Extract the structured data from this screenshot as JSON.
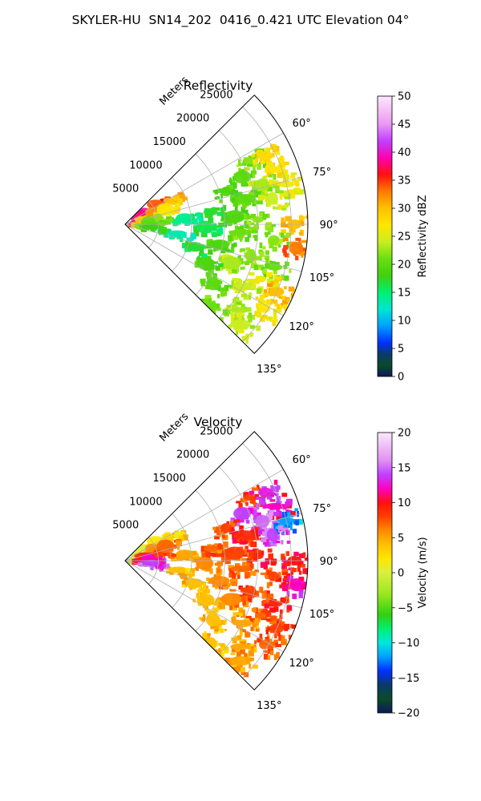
{
  "suptitle": "SKYLER-HU  SN14_202  0416_0.421 UTC Elevation 04°",
  "chart_data": [
    {
      "type": "heatmap",
      "subtype": "polar sector (PPI radar scan)",
      "title": "Reflectivity",
      "radial_label": "Meters",
      "range_ticks": [
        5000,
        10000,
        15000,
        20000,
        25000
      ],
      "range_tick_labels": [
        "5000",
        "10000",
        "15000",
        "20000",
        "25000"
      ],
      "range_max": 27500,
      "azimuth_ticks_deg": [
        60,
        75,
        90,
        105,
        120,
        135
      ],
      "azimuth_tick_labels": [
        "60°",
        "75°",
        "90°",
        "105°",
        "120°",
        "135°"
      ],
      "azimuth_range_deg": [
        45,
        135
      ],
      "grid": true,
      "colorbar": {
        "label": "Reflectivity dBZ",
        "min": 0,
        "max": 50,
        "ticks": [
          0,
          5,
          10,
          15,
          20,
          25,
          30,
          35,
          40,
          45,
          50
        ],
        "tick_labels": [
          "0",
          "5",
          "10",
          "15",
          "20",
          "25",
          "30",
          "35",
          "40",
          "45",
          "50"
        ],
        "stops": [
          [
            0,
            "#0a1a5a"
          ],
          [
            2,
            "#0b4a2a"
          ],
          [
            4,
            "#0a3a6a"
          ],
          [
            6,
            "#0030ff"
          ],
          [
            9,
            "#00a0ff"
          ],
          [
            12,
            "#00e6d0"
          ],
          [
            15,
            "#00f070"
          ],
          [
            18,
            "#40d010"
          ],
          [
            21,
            "#6adf10"
          ],
          [
            24,
            "#c8ee20"
          ],
          [
            27,
            "#ffe600"
          ],
          [
            30,
            "#ffc000"
          ],
          [
            33,
            "#ff7a00"
          ],
          [
            36,
            "#ff1010"
          ],
          [
            39,
            "#ff00b0"
          ],
          [
            42,
            "#c040ff"
          ],
          [
            45,
            "#ea98f2"
          ],
          [
            50,
            "#fce8fc"
          ]
        ]
      },
      "echo_cells": [
        {
          "az": 63,
          "r": 21000,
          "val": 22
        },
        {
          "az": 64,
          "r": 23500,
          "val": 28
        },
        {
          "az": 68,
          "r": 19000,
          "val": 20
        },
        {
          "az": 70,
          "r": 24000,
          "val": 27
        },
        {
          "az": 72,
          "r": 16000,
          "val": 19
        },
        {
          "az": 74,
          "r": 21500,
          "val": 23
        },
        {
          "az": 76,
          "r": 25000,
          "val": 26
        },
        {
          "az": 78,
          "r": 18500,
          "val": 20
        },
        {
          "az": 80,
          "r": 22500,
          "val": 24
        },
        {
          "az": 82,
          "r": 13000,
          "val": 17
        },
        {
          "az": 84,
          "r": 9000,
          "val": 14
        },
        {
          "az": 86,
          "r": 16500,
          "val": 19
        },
        {
          "az": 88,
          "r": 20000,
          "val": 22
        },
        {
          "az": 90,
          "r": 25500,
          "val": 30
        },
        {
          "az": 92,
          "r": 12000,
          "val": 16
        },
        {
          "az": 94,
          "r": 17500,
          "val": 21
        },
        {
          "az": 96,
          "r": 22500,
          "val": 22
        },
        {
          "az": 98,
          "r": 26000,
          "val": 33
        },
        {
          "az": 100,
          "r": 8000,
          "val": 13
        },
        {
          "az": 102,
          "r": 14500,
          "val": 19
        },
        {
          "az": 104,
          "r": 19500,
          "val": 22
        },
        {
          "az": 106,
          "r": 23500,
          "val": 21
        },
        {
          "az": 108,
          "r": 11000,
          "val": 17
        },
        {
          "az": 110,
          "r": 17000,
          "val": 23
        },
        {
          "az": 112,
          "r": 22000,
          "val": 26
        },
        {
          "az": 114,
          "r": 25000,
          "val": 30
        },
        {
          "az": 116,
          "r": 13500,
          "val": 19
        },
        {
          "az": 118,
          "r": 20000,
          "val": 24
        },
        {
          "az": 121,
          "r": 24500,
          "val": 27
        },
        {
          "az": 124,
          "r": 16000,
          "val": 20
        },
        {
          "az": 127,
          "r": 21500,
          "val": 23
        },
        {
          "az": 131,
          "r": 23000,
          "val": 24
        },
        {
          "az": 134,
          "r": 18000,
          "val": 21
        },
        {
          "az": 55,
          "r": 3500,
          "val": 40
        },
        {
          "az": 57,
          "r": 5500,
          "val": 34
        },
        {
          "az": 60,
          "r": 2500,
          "val": 38
        },
        {
          "az": 62,
          "r": 7500,
          "val": 30
        },
        {
          "az": 66,
          "r": 4500,
          "val": 32
        },
        {
          "az": 70,
          "r": 6500,
          "val": 27
        },
        {
          "az": 75,
          "r": 3000,
          "val": 29
        },
        {
          "az": 80,
          "r": 5000,
          "val": 22
        },
        {
          "az": 86,
          "r": 3500,
          "val": 20
        },
        {
          "az": 95,
          "r": 4000,
          "val": 18
        }
      ]
    },
    {
      "type": "heatmap",
      "subtype": "polar sector (PPI radar scan)",
      "title": "Velocity",
      "radial_label": "Meters",
      "range_ticks": [
        5000,
        10000,
        15000,
        20000,
        25000
      ],
      "range_tick_labels": [
        "5000",
        "10000",
        "15000",
        "20000",
        "25000"
      ],
      "range_max": 27500,
      "azimuth_ticks_deg": [
        60,
        75,
        90,
        105,
        120,
        135
      ],
      "azimuth_tick_labels": [
        "60°",
        "75°",
        "90°",
        "105°",
        "120°",
        "135°"
      ],
      "azimuth_range_deg": [
        45,
        135
      ],
      "grid": true,
      "colorbar": {
        "label": "Velocity (m/s)",
        "min": -20,
        "max": 20,
        "ticks": [
          -20,
          -15,
          -10,
          -5,
          0,
          5,
          10,
          15,
          20
        ],
        "tick_labels": [
          "−20",
          "−15",
          "−10",
          "−5",
          "0",
          "5",
          "10",
          "15",
          "20"
        ],
        "stops": [
          [
            -20,
            "#0a1a5a"
          ],
          [
            -18,
            "#0b4a2a"
          ],
          [
            -16,
            "#0a3a6a"
          ],
          [
            -14,
            "#0030ff"
          ],
          [
            -12,
            "#00a0ff"
          ],
          [
            -10,
            "#00e6e0"
          ],
          [
            -8,
            "#00f070"
          ],
          [
            -6,
            "#30d010"
          ],
          [
            -3,
            "#9ae820"
          ],
          [
            0,
            "#d8f040"
          ],
          [
            2,
            "#ffe600"
          ],
          [
            4,
            "#ffc000"
          ],
          [
            6,
            "#ff8a00"
          ],
          [
            8,
            "#ff4000"
          ],
          [
            10,
            "#ff1010"
          ],
          [
            12,
            "#ff00c0"
          ],
          [
            14,
            "#c040ff"
          ],
          [
            16,
            "#e090f0"
          ],
          [
            20,
            "#fce8fc"
          ]
        ]
      },
      "echo_cells": [
        {
          "az": 63,
          "r": 21000,
          "val": 8
        },
        {
          "az": 64,
          "r": 23500,
          "val": 13
        },
        {
          "az": 68,
          "r": 19000,
          "val": 14
        },
        {
          "az": 70,
          "r": 24000,
          "val": 12
        },
        {
          "az": 72,
          "r": 16000,
          "val": 8
        },
        {
          "az": 74,
          "r": 21500,
          "val": 15
        },
        {
          "az": 76,
          "r": 25000,
          "val": -12
        },
        {
          "az": 78,
          "r": 18500,
          "val": 9
        },
        {
          "az": 80,
          "r": 22500,
          "val": 14
        },
        {
          "az": 82,
          "r": 13000,
          "val": 7
        },
        {
          "az": 84,
          "r": 9000,
          "val": 5
        },
        {
          "az": 86,
          "r": 16500,
          "val": 8
        },
        {
          "az": 88,
          "r": 20000,
          "val": 9
        },
        {
          "az": 90,
          "r": 25500,
          "val": 10
        },
        {
          "az": 92,
          "r": 12000,
          "val": 6
        },
        {
          "az": 94,
          "r": 17500,
          "val": 7
        },
        {
          "az": 96,
          "r": 22500,
          "val": 8
        },
        {
          "az": 98,
          "r": 26000,
          "val": 12
        },
        {
          "az": 100,
          "r": 8000,
          "val": 4
        },
        {
          "az": 102,
          "r": 14500,
          "val": 6
        },
        {
          "az": 104,
          "r": 19500,
          "val": 8
        },
        {
          "az": 106,
          "r": 23500,
          "val": 9
        },
        {
          "az": 108,
          "r": 11000,
          "val": 4
        },
        {
          "az": 110,
          "r": 17000,
          "val": 6
        },
        {
          "az": 112,
          "r": 22000,
          "val": 7
        },
        {
          "az": 114,
          "r": 25000,
          "val": 8
        },
        {
          "az": 116,
          "r": 13500,
          "val": 4
        },
        {
          "az": 118,
          "r": 20000,
          "val": 5
        },
        {
          "az": 121,
          "r": 24500,
          "val": 7
        },
        {
          "az": 124,
          "r": 16000,
          "val": 4
        },
        {
          "az": 127,
          "r": 21500,
          "val": 5
        },
        {
          "az": 131,
          "r": 23000,
          "val": 5
        },
        {
          "az": 134,
          "r": 18000,
          "val": 4
        },
        {
          "az": 55,
          "r": 3500,
          "val": 1
        },
        {
          "az": 57,
          "r": 5500,
          "val": 2
        },
        {
          "az": 60,
          "r": 2500,
          "val": 0
        },
        {
          "az": 62,
          "r": 7500,
          "val": 3
        },
        {
          "az": 66,
          "r": 4500,
          "val": 6
        },
        {
          "az": 70,
          "r": 6500,
          "val": 7
        },
        {
          "az": 75,
          "r": 3000,
          "val": 9
        },
        {
          "az": 80,
          "r": 5000,
          "val": 8
        },
        {
          "az": 86,
          "r": 3500,
          "val": 12
        },
        {
          "az": 95,
          "r": 4000,
          "val": 14
        }
      ]
    }
  ]
}
